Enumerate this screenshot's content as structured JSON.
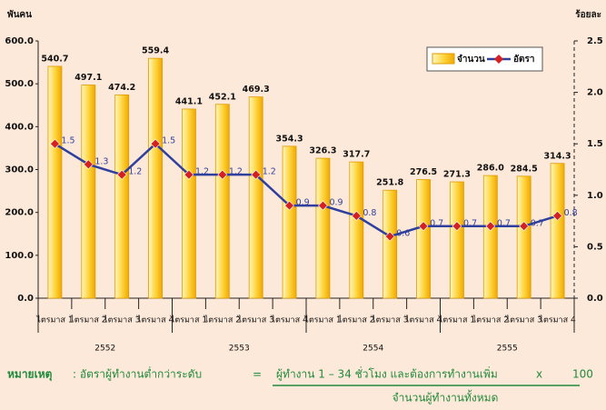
{
  "chart_data": {
    "type": "combo",
    "y_label": "พันคน",
    "y2_label": "ร้อยละ",
    "categories": [
      "ไตรมาส 1",
      "ไตรมาส 2",
      "ไตรมาส 3",
      "ไตรมาส 4",
      "ไตรมาส 1",
      "ไตรมาส 2",
      "ไตรมาส 3",
      "ไตรมาส 4",
      "ไตรมาส 1",
      "ไตรมาส 2",
      "ไตรมาส 3",
      "ไตรมาส 4",
      "ไตรมาส 1",
      "ไตรมาส 2",
      "ไตรมาส 3",
      "ไตรมาส 4"
    ],
    "year_groups": [
      "2552",
      "2553",
      "2554",
      "2555"
    ],
    "series": [
      {
        "name": "จำนวน",
        "type": "bar",
        "color": "#f7c21a",
        "values": [
          540.7,
          497.1,
          474.2,
          559.4,
          441.1,
          452.1,
          469.3,
          354.3,
          326.3,
          317.7,
          251.8,
          276.5,
          271.3,
          286.0,
          284.5,
          314.3
        ],
        "value_labels": [
          "540.7",
          "497.1",
          "474.2",
          "559.4",
          "441.1",
          "452.1",
          "469.3",
          "354.3",
          "326.3",
          "317.7",
          "251.8",
          "276.5",
          "271.3",
          "286.0",
          "284.5",
          "314.3"
        ]
      },
      {
        "name": "อัตรา",
        "type": "line",
        "axis": "y2",
        "color": "#2f3f9e",
        "marker_color": "#d42020",
        "values": [
          1.5,
          1.3,
          1.2,
          1.5,
          1.2,
          1.2,
          1.2,
          0.9,
          0.9,
          0.8,
          0.6,
          0.7,
          0.7,
          0.7,
          0.7,
          0.8
        ]
      }
    ],
    "ylim": [
      0,
      600
    ],
    "yticks": [
      {
        "value": 0,
        "label": "0.0"
      },
      {
        "value": 100,
        "label": "100.0"
      },
      {
        "value": 200,
        "label": "200.0"
      },
      {
        "value": 300,
        "label": "300.0"
      },
      {
        "value": 400,
        "label": "400.0"
      },
      {
        "value": 500,
        "label": "500.0"
      },
      {
        "value": 600,
        "label": "600.0"
      }
    ],
    "y2lim": [
      0,
      2.5
    ],
    "y2ticks": [
      {
        "value": 0,
        "label": "0.0"
      },
      0.5,
      {
        "value": 1,
        "label": "1.0"
      },
      1.5,
      {
        "value": 2,
        "label": "2.0"
      },
      2.5
    ],
    "legend": "upper right",
    "note": {
      "label": "หมายเหตุ",
      "text": ": อัตราผู้ทำงานต่ำกว่าระดับ",
      "equals": "=",
      "numerator": "ผู้ทำงาน 1 – 34 ชั่วโมง และต้องการทำงานเพิ่ม",
      "times": "x",
      "hundred": "100",
      "denominator": "จำนวนผู้ทำงานทั้งหมด"
    }
  }
}
